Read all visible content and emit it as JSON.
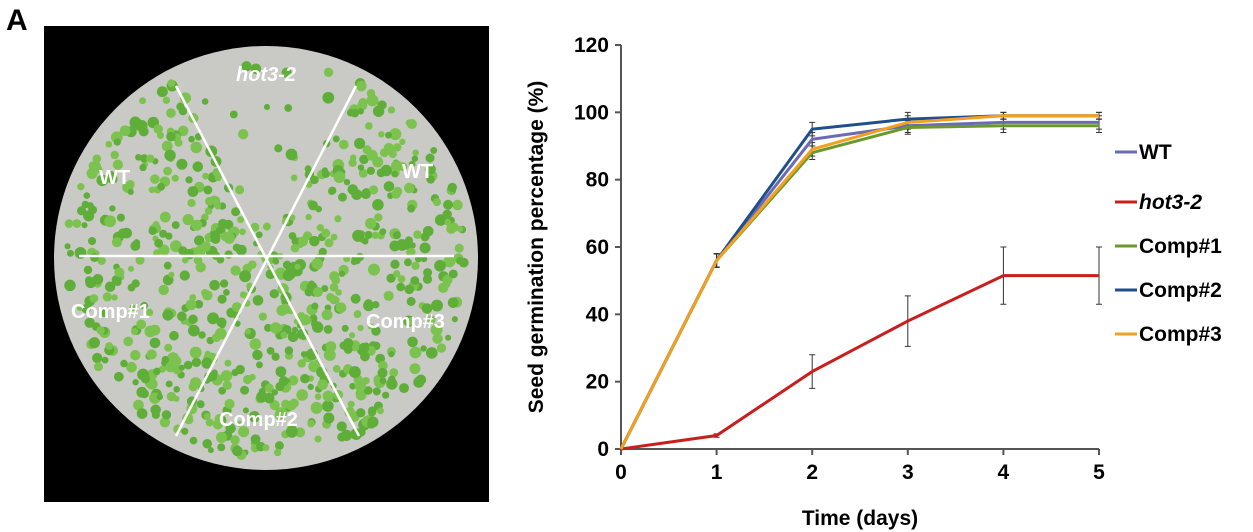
{
  "panel_label": "A",
  "photo": {
    "labels": [
      "hot3-2",
      "WT",
      "WT",
      "Comp#1",
      "Comp#2",
      "Comp#3"
    ]
  },
  "chart_data": {
    "type": "line",
    "xlabel": "Time (days)",
    "ylabel": "Seed germination percentage (%)",
    "x": [
      0,
      1,
      2,
      3,
      4,
      5
    ],
    "xlim": [
      0,
      5
    ],
    "ylim": [
      0,
      120
    ],
    "xticks": [
      0,
      1,
      2,
      3,
      4,
      5
    ],
    "yticks": [
      0,
      20,
      40,
      60,
      80,
      100,
      120
    ],
    "legend_position": "right",
    "series": [
      {
        "name": "WT",
        "color": "#6b6bb5",
        "values": [
          0,
          56,
          92,
          96,
          97,
          97
        ],
        "err": [
          0,
          2,
          2,
          2,
          2,
          2
        ]
      },
      {
        "name": "hot3-2",
        "color": "#c81e1e",
        "italic": true,
        "values": [
          0,
          4,
          23,
          38,
          51.5,
          51.5
        ],
        "err": [
          0,
          0.5,
          5,
          7.5,
          8.5,
          8.5
        ]
      },
      {
        "name": "Comp#1",
        "color": "#6a9a2e",
        "values": [
          0,
          56,
          88,
          95.5,
          96,
          96
        ],
        "err": [
          0,
          2,
          2,
          2,
          2,
          2
        ]
      },
      {
        "name": "Comp#2",
        "color": "#1f4e8c",
        "values": [
          0,
          56,
          95,
          98,
          99,
          99
        ],
        "err": [
          0,
          2,
          2,
          2,
          1,
          1
        ]
      },
      {
        "name": "Comp#3",
        "color": "#f2a01f",
        "values": [
          0,
          56,
          89,
          97,
          99,
          99
        ],
        "err": [
          0,
          2,
          2,
          2,
          1,
          1
        ]
      }
    ]
  }
}
